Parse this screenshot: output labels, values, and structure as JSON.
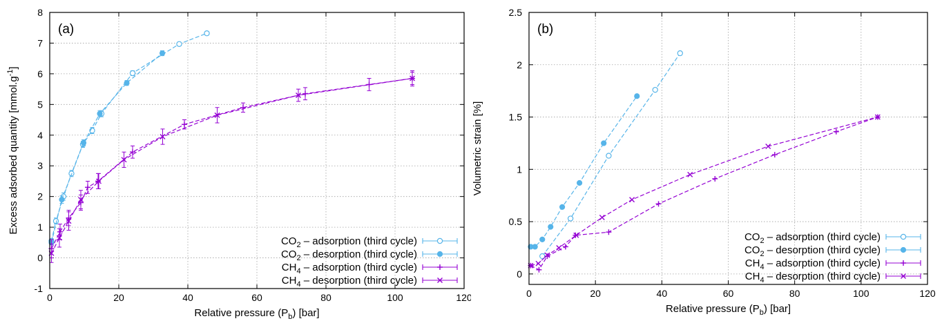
{
  "chart_data": [
    {
      "type": "scatter",
      "panel_label": "(a)",
      "xlabel": "Relative pressure (P",
      "xlabel_sub": "b",
      "xlabel_end": ") [bar]",
      "ylabel": "Excess adsorbed quantity [mmol.g",
      "ylabel_sup": "-1",
      "ylabel_end": "]",
      "xlim": [
        0,
        120
      ],
      "ylim": [
        -1,
        8
      ],
      "xticks": [
        0,
        20,
        40,
        60,
        80,
        100,
        120
      ],
      "yticks": [
        -1,
        0,
        1,
        2,
        3,
        4,
        5,
        6,
        7,
        8
      ],
      "grid": true,
      "legend_position": "bottom-right",
      "series": [
        {
          "name": "CO2 – adsorption (third cycle)",
          "name_parts": [
            "CO",
            "2",
            " – adsorption (third cycle)"
          ],
          "color": "#56b4e9",
          "marker": "circle-open",
          "x": [
            0.5,
            1.8,
            4.0,
            6.3,
            9.6,
            12.3,
            15.0,
            24.0,
            37.5,
            45.5
          ],
          "y": [
            0.55,
            1.2,
            2.0,
            2.75,
            3.7,
            4.15,
            4.7,
            6.02,
            6.97,
            7.32
          ],
          "err": [
            0.08,
            0.1,
            0.12,
            0.1,
            0.1,
            0.1,
            0.1,
            0.08,
            0.06,
            0.06
          ]
        },
        {
          "name": "CO2 – desorption (third cycle)",
          "name_parts": [
            "CO",
            "2",
            " – desorption (third cycle)"
          ],
          "color": "#56b4e9",
          "marker": "circle-filled",
          "x": [
            0.5,
            3.5,
            9.8,
            14.5,
            22.3,
            32.6
          ],
          "y": [
            0.5,
            1.9,
            3.75,
            4.7,
            5.7,
            6.67
          ],
          "err": [
            0.08,
            0.12,
            0.1,
            0.1,
            0.08,
            0.08
          ]
        },
        {
          "name": "CH4 – adsorption (third cycle)",
          "name_parts": [
            "CH",
            "4",
            " – adsorption (third cycle)"
          ],
          "color": "#9400d3",
          "marker": "plus",
          "x": [
            0.5,
            3.0,
            5.5,
            9.0,
            11.0,
            14.0,
            24.0,
            39.0,
            56.0,
            74.0,
            92.5,
            105.0
          ],
          "y": [
            0.3,
            0.85,
            1.3,
            1.8,
            2.3,
            2.5,
            3.45,
            4.35,
            4.9,
            5.35,
            5.65,
            5.85
          ],
          "err": [
            0.3,
            0.25,
            0.25,
            0.25,
            0.2,
            0.25,
            0.2,
            0.15,
            0.15,
            0.2,
            0.2,
            0.25
          ]
        },
        {
          "name": "CH4 – desorption (third cycle)",
          "name_parts": [
            "CH",
            "4",
            " – desorption (third cycle)"
          ],
          "color": "#9400d3",
          "marker": "cross",
          "x": [
            0.5,
            2.8,
            5.5,
            9.0,
            14.2,
            21.5,
            32.7,
            48.5,
            72.0,
            105.0
          ],
          "y": [
            0.15,
            0.65,
            1.2,
            1.9,
            2.5,
            3.2,
            3.95,
            4.65,
            5.3,
            5.85
          ],
          "err": [
            0.3,
            0.3,
            0.3,
            0.3,
            0.25,
            0.25,
            0.25,
            0.25,
            0.2,
            0.2
          ]
        }
      ]
    },
    {
      "type": "scatter",
      "panel_label": "(b)",
      "xlabel": "Relative pressure (P",
      "xlabel_sub": "b",
      "xlabel_end": ") [bar]",
      "ylabel": "Volumetric strain [%]",
      "xlim": [
        0,
        120
      ],
      "ylim": [
        -0.1,
        2.5
      ],
      "xticks": [
        0,
        20,
        40,
        60,
        80,
        100,
        120
      ],
      "yticks": [
        0,
        0.5,
        1,
        1.5,
        2,
        2.5
      ],
      "grid": true,
      "legend_position": "bottom-right",
      "series": [
        {
          "name": "CO2 – adsorption (third cycle)",
          "name_parts": [
            "CO",
            "2",
            " – adsorption (third cycle)"
          ],
          "color": "#56b4e9",
          "marker": "circle-open",
          "x": [
            4.0,
            12.5,
            24.0,
            38.0,
            45.5
          ],
          "y": [
            0.17,
            0.53,
            1.13,
            1.76,
            2.11
          ]
        },
        {
          "name": "CO2 – desorption (third cycle)",
          "name_parts": [
            "CO",
            "2",
            " – desorption (third cycle)"
          ],
          "color": "#56b4e9",
          "marker": "circle-filled",
          "x": [
            0.5,
            1.8,
            4.0,
            6.5,
            10.0,
            15.2,
            22.5,
            32.5
          ],
          "y": [
            0.26,
            0.26,
            0.33,
            0.45,
            0.64,
            0.87,
            1.25,
            1.7
          ]
        },
        {
          "name": "CH4 – adsorption (third cycle)",
          "name_parts": [
            "CH",
            "4",
            " – adsorption (third cycle)"
          ],
          "color": "#9400d3",
          "marker": "plus",
          "x": [
            0.5,
            3.0,
            5.5,
            11.0,
            14.0,
            24.0,
            39.0,
            56.0,
            74.0,
            92.5,
            105.0
          ],
          "y": [
            0.08,
            0.04,
            0.17,
            0.26,
            0.37,
            0.4,
            0.67,
            0.91,
            1.14,
            1.36,
            1.5
          ]
        },
        {
          "name": "CH4 – desorption (third cycle)",
          "name_parts": [
            "CH",
            "4",
            " – desorption (third cycle)"
          ],
          "color": "#9400d3",
          "marker": "cross",
          "x": [
            0.5,
            2.8,
            5.5,
            9.0,
            14.2,
            22.0,
            31.0,
            48.5,
            72.0,
            105.0
          ],
          "y": [
            0.08,
            0.1,
            0.18,
            0.25,
            0.37,
            0.54,
            0.71,
            0.95,
            1.22,
            1.5
          ]
        }
      ]
    }
  ]
}
